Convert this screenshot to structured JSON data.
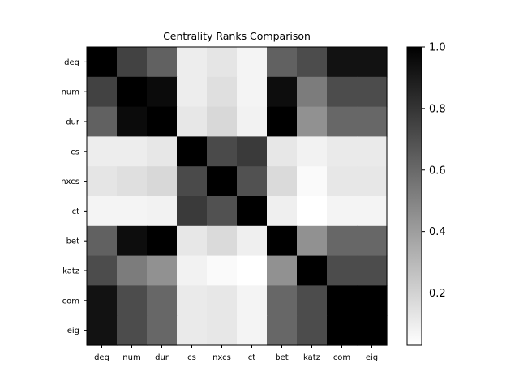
{
  "chart_data": {
    "type": "heatmap",
    "title": "Centrality Ranks Comparison",
    "xlabel": "",
    "ylabel": "",
    "labels": [
      "deg",
      "num",
      "dur",
      "cs",
      "nxcs",
      "ct",
      "bet",
      "katz",
      "com",
      "eig"
    ],
    "values": [
      [
        1.0,
        0.75,
        0.63,
        0.1,
        0.13,
        0.07,
        0.63,
        0.71,
        0.93,
        0.93
      ],
      [
        0.75,
        1.0,
        0.96,
        0.1,
        0.15,
        0.07,
        0.95,
        0.53,
        0.71,
        0.71
      ],
      [
        0.63,
        0.96,
        1.0,
        0.12,
        0.18,
        0.08,
        1.0,
        0.45,
        0.61,
        0.61
      ],
      [
        0.1,
        0.1,
        0.12,
        1.0,
        0.72,
        0.78,
        0.12,
        0.08,
        0.11,
        0.11
      ],
      [
        0.13,
        0.15,
        0.18,
        0.72,
        1.0,
        0.69,
        0.17,
        0.05,
        0.12,
        0.12
      ],
      [
        0.07,
        0.07,
        0.08,
        0.78,
        0.69,
        1.0,
        0.09,
        0.03,
        0.07,
        0.07
      ],
      [
        0.63,
        0.95,
        1.0,
        0.12,
        0.17,
        0.09,
        1.0,
        0.45,
        0.61,
        0.61
      ],
      [
        0.71,
        0.53,
        0.45,
        0.08,
        0.05,
        0.03,
        0.45,
        1.0,
        0.71,
        0.71
      ],
      [
        0.93,
        0.71,
        0.61,
        0.11,
        0.12,
        0.07,
        0.61,
        0.71,
        1.0,
        1.0
      ],
      [
        0.93,
        0.71,
        0.61,
        0.11,
        0.12,
        0.07,
        0.61,
        0.71,
        1.0,
        1.0
      ]
    ],
    "colormap": "Greys",
    "vmin": 0.03,
    "vmax": 1.0,
    "colorbar_ticks": [
      "0.2",
      "0.4",
      "0.6",
      "0.8",
      "1.0"
    ],
    "colorbar_tick_values": [
      0.2,
      0.4,
      0.6,
      0.8,
      1.0
    ],
    "grid": false,
    "legend": "colorbar-right"
  }
}
